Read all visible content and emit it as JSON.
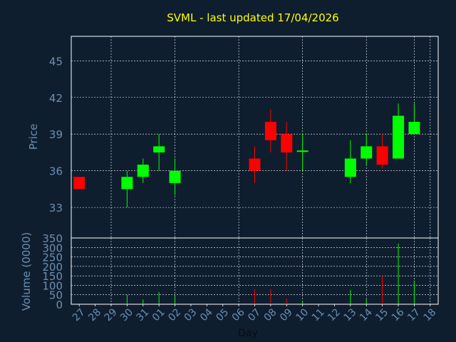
{
  "colors": {
    "background": "#0f1e2e",
    "grid": "#ffffff",
    "axis_text": "#6a8fb5",
    "title": "#ffff00",
    "up": "#00ff00",
    "down": "#ff0000"
  },
  "chart_data": {
    "type": "candlestick",
    "title": "SVML - last updated 17/04/2026",
    "xlabel": "Day",
    "ylabel_price": "Price",
    "ylabel_volume": "Volume (0000)",
    "x_ticks": [
      "27",
      "28",
      "29",
      "30",
      "31",
      "01",
      "02",
      "03",
      "04",
      "05",
      "06",
      "07",
      "08",
      "09",
      "10",
      "11",
      "12",
      "13",
      "14",
      "15",
      "16",
      "17",
      "18"
    ],
    "price_yticks": [
      33,
      36,
      39,
      42,
      45
    ],
    "price_ylim": [
      30.5,
      47
    ],
    "volume_yticks": [
      0,
      50,
      100,
      150,
      200,
      250,
      300,
      350
    ],
    "volume_ylim": [
      0,
      350
    ],
    "grid": true,
    "candles": [
      {
        "day": "27",
        "open": 35.5,
        "close": 34.5,
        "high": 35.5,
        "low": 34.5,
        "volume": 0
      },
      {
        "day": "30",
        "open": 34.5,
        "close": 35.5,
        "high": 36.0,
        "low": 33.0,
        "volume": 50
      },
      {
        "day": "31",
        "open": 35.5,
        "close": 36.5,
        "high": 37.0,
        "low": 35.0,
        "volume": 25
      },
      {
        "day": "01",
        "open": 37.5,
        "close": 38.0,
        "high": 39.0,
        "low": 36.0,
        "volume": 65
      },
      {
        "day": "02",
        "open": 35.0,
        "close": 36.0,
        "high": 37.0,
        "low": 34.0,
        "volume": 45
      },
      {
        "day": "07",
        "open": 37.0,
        "close": 36.0,
        "high": 38.0,
        "low": 35.0,
        "volume": 80
      },
      {
        "day": "08",
        "open": 40.0,
        "close": 38.5,
        "high": 41.0,
        "low": 37.5,
        "volume": 80
      },
      {
        "day": "09",
        "open": 39.0,
        "close": 37.5,
        "high": 40.0,
        "low": 36.0,
        "volume": 30
      },
      {
        "day": "10",
        "open": 37.5,
        "close": 37.6,
        "high": 39.0,
        "low": 36.0,
        "volume": 15
      },
      {
        "day": "13",
        "open": 35.5,
        "close": 37.0,
        "high": 38.5,
        "low": 35.0,
        "volume": 75
      },
      {
        "day": "14",
        "open": 37.0,
        "close": 38.0,
        "high": 39.0,
        "low": 36.5,
        "volume": 25
      },
      {
        "day": "15",
        "open": 38.0,
        "close": 36.5,
        "high": 39.0,
        "low": 36.2,
        "volume": 150
      },
      {
        "day": "16",
        "open": 37.0,
        "close": 40.5,
        "high": 41.5,
        "low": 37.0,
        "volume": 320
      },
      {
        "day": "17",
        "open": 39.0,
        "close": 40.0,
        "high": 41.5,
        "low": 39.0,
        "volume": 125
      }
    ]
  }
}
